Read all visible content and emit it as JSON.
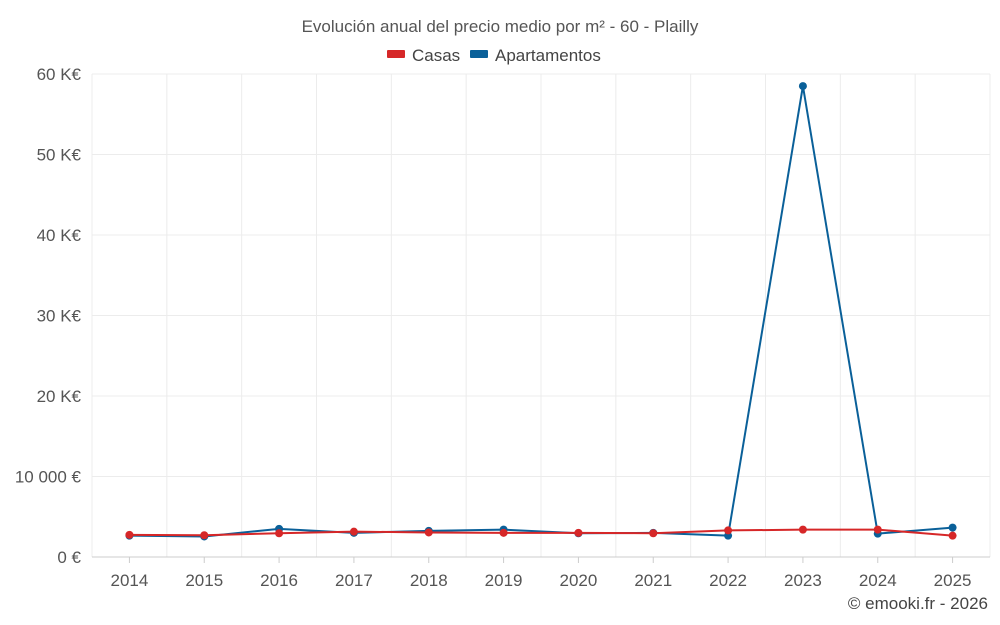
{
  "chart_data": {
    "type": "line",
    "title": "Evolución anual del precio medio por m² - 60 - Plailly",
    "categories": [
      "2014",
      "2015",
      "2016",
      "2017",
      "2018",
      "2019",
      "2020",
      "2021",
      "2022",
      "2023",
      "2024",
      "2025"
    ],
    "series": [
      {
        "name": "Casas",
        "color": "#d62728",
        "values": [
          2750,
          2700,
          2950,
          3150,
          3050,
          3000,
          3000,
          2950,
          3300,
          3400,
          3400,
          2650
        ]
      },
      {
        "name": "Apartamentos",
        "color": "#0a6099",
        "values": [
          2650,
          2550,
          3500,
          3000,
          3250,
          3400,
          2950,
          3000,
          2650,
          58500,
          2900,
          3650
        ]
      }
    ],
    "ylim": [
      0,
      60000
    ],
    "yticks": [
      0,
      10000,
      20000,
      30000,
      40000,
      50000,
      60000
    ],
    "ytick_labels": [
      "0 €",
      "10 000 €",
      "20 K€",
      "30 K€",
      "40 K€",
      "50 K€",
      "60 K€"
    ],
    "xlabel": "",
    "ylabel": "",
    "grid": true,
    "legend_position": "top-center",
    "credit": "© emooki.fr - 2026"
  }
}
